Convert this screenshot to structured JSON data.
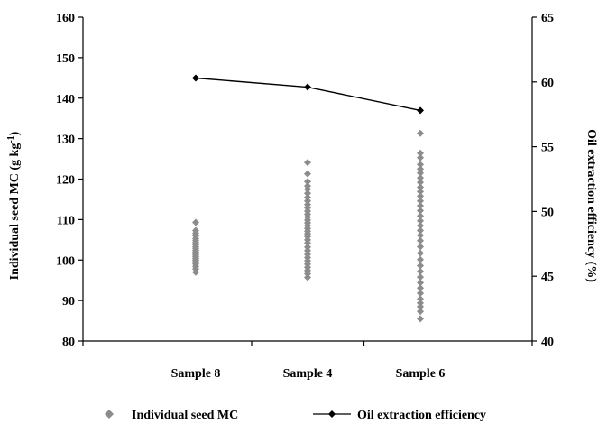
{
  "chart_data": {
    "type": "scatter",
    "categories": [
      "Sample 8",
      "Sample 4",
      "Sample 6"
    ],
    "left_axis": {
      "label": "Individual seed MC (g kg",
      "label_sup": "-1",
      "label_close": ")",
      "ylim": [
        80,
        160
      ],
      "ticks": [
        80,
        90,
        100,
        110,
        120,
        130,
        140,
        150,
        160
      ]
    },
    "right_axis": {
      "label": "Oil extraction efficiency (%)",
      "ylim": [
        40,
        65
      ],
      "ticks": [
        40,
        45,
        50,
        55,
        60,
        65
      ]
    },
    "series": [
      {
        "name": "Individual seed MC",
        "axis": "left",
        "marker": "diamond",
        "color": "#8c8c8c",
        "points": {
          "Sample 8": [
            109.3,
            107.3,
            106.6,
            106.0,
            105.3,
            104.8,
            104.3,
            103.8,
            103.3,
            102.9,
            102.4,
            102.0,
            101.6,
            101.2,
            100.8,
            100.4,
            100.0,
            99.6,
            99.0,
            98.4,
            97.8,
            97.0
          ],
          "Sample 4": [
            124.1,
            121.3,
            119.4,
            118.3,
            117.5,
            116.5,
            115.5,
            114.6,
            113.7,
            112.9,
            112.1,
            111.3,
            110.6,
            109.9,
            109.2,
            108.5,
            107.8,
            107.1,
            106.5,
            105.8,
            105.0,
            104.2,
            103.2,
            102.3,
            101.4,
            100.6,
            99.8,
            99.0,
            98.2,
            97.4,
            96.6,
            95.7
          ],
          "Sample 6": [
            131.3,
            126.4,
            125.3,
            123.6,
            122.5,
            121.5,
            120.3,
            119.2,
            118.0,
            116.9,
            115.8,
            114.6,
            113.4,
            112.2,
            110.9,
            109.7,
            108.5,
            107.3,
            106.1,
            104.8,
            103.3,
            101.7,
            100.1,
            98.6,
            97.2,
            95.8,
            94.4,
            93.1,
            91.8,
            90.4,
            89.4,
            88.5,
            87.3,
            85.5
          ]
        }
      },
      {
        "name": "Oil extraction efficiency",
        "axis": "right",
        "marker": "diamond-line",
        "color": "#000000",
        "values": [
          60.3,
          59.6,
          57.8
        ]
      }
    ],
    "legend": {
      "position": "bottom"
    },
    "grid": false
  }
}
